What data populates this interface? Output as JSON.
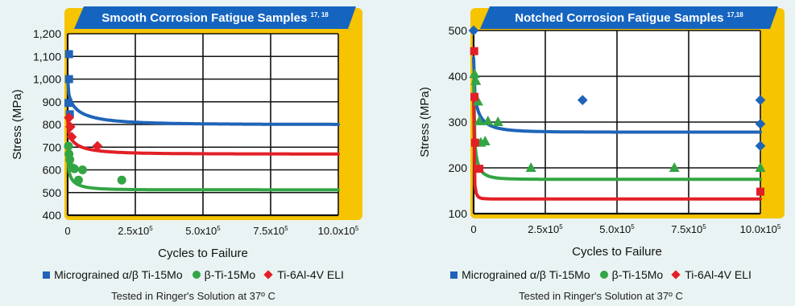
{
  "chart_data": [
    {
      "type": "scatter",
      "title": "Smooth Corrosion Fatigue Samples",
      "title_superscript": "17, 18",
      "xlabel": "Cycles to Failure",
      "ylabel": "Stress (MPa)",
      "xlim": [
        0,
        1000000
      ],
      "ylim": [
        400,
        1200
      ],
      "x_ticks": [
        0,
        250000,
        500000,
        750000,
        1000000
      ],
      "x_tick_labels": [
        "0",
        "2.5x10^5",
        "5.0x10^5",
        "7.5x10^5",
        "10.0x10^5"
      ],
      "y_ticks": [
        400,
        500,
        600,
        700,
        800,
        900,
        1000,
        1100,
        1200
      ],
      "y_tick_labels": [
        "400",
        "500",
        "600",
        "700",
        "800",
        "900",
        "1,000",
        "1,100",
        "1,200"
      ],
      "grid": true,
      "series": [
        {
          "name": "Micrograined α/β Ti-15Mo",
          "marker": "square",
          "color": "#1f64b8",
          "points": [
            [
              5000,
              1110
            ],
            [
              5000,
              1000
            ],
            [
              3000,
              895
            ],
            [
              8000,
              845
            ]
          ],
          "fit": {
            "a": 1000,
            "b": 800,
            "k": 6
          }
        },
        {
          "name": "β-Ti-15Mo",
          "marker": "circle",
          "color": "#33a544",
          "points": [
            [
              3000,
              705
            ],
            [
              5000,
              670
            ],
            [
              8000,
              645
            ],
            [
              15000,
              610
            ],
            [
              25000,
              605
            ],
            [
              40000,
              555
            ],
            [
              55000,
              600
            ],
            [
              200000,
              555
            ]
          ],
          "fit": {
            "a": 675,
            "b": 512,
            "k": 10
          }
        },
        {
          "name": "Ti-6Al-4V ELI",
          "marker": "diamond",
          "color": "#e21f26",
          "points": [
            [
              5000,
              830
            ],
            [
              10000,
              790
            ],
            [
              15000,
              745
            ],
            [
              110000,
              705
            ]
          ],
          "fit": {
            "a": 820,
            "b": 670,
            "k": 7
          }
        }
      ],
      "footnote": "Tested in Ringer's Solution at 37º C"
    },
    {
      "type": "scatter",
      "title": "Notched Corrosion Fatigue Samples",
      "title_superscript": "17,18",
      "xlabel": "Cycles to Failure",
      "ylabel": "Stress (MPa)",
      "xlim": [
        0,
        1000000
      ],
      "ylim": [
        100,
        500
      ],
      "x_ticks": [
        0,
        250000,
        500000,
        750000,
        1000000
      ],
      "x_tick_labels": [
        "0",
        "2.5x10^5",
        "5.0x10^5",
        "7.5x10^5",
        "10.0x10^5"
      ],
      "y_ticks": [
        100,
        200,
        300,
        400,
        500
      ],
      "y_tick_labels": [
        "100",
        "200",
        "300",
        "400",
        "500"
      ],
      "grid": true,
      "series": [
        {
          "name": "Micrograined α/β Ti-15Mo",
          "marker": "diamond",
          "color": "#1f64b8",
          "points": [
            [
              0,
              500
            ],
            [
              380000,
              348
            ],
            [
              1000000,
              348
            ],
            [
              1000000,
              296
            ],
            [
              1000000,
              248
            ]
          ],
          "fit": {
            "a": 440,
            "b": 278,
            "k": 10
          }
        },
        {
          "name": "β-Ti-15Mo",
          "marker": "triangle",
          "color": "#33a544",
          "points": [
            [
              3000,
              405
            ],
            [
              8000,
              390
            ],
            [
              15000,
              345
            ],
            [
              20000,
              302
            ],
            [
              25000,
              255
            ],
            [
              40000,
              258
            ],
            [
              50000,
              302
            ],
            [
              85000,
              300
            ],
            [
              200000,
              200
            ],
            [
              700000,
              200
            ],
            [
              1000000,
              200
            ]
          ],
          "fit": {
            "a": 390,
            "b": 175,
            "k": 15
          }
        },
        {
          "name": "Ti-6Al-4V ELI",
          "marker": "square",
          "color": "#e21f26",
          "points": [
            [
              2000,
              455
            ],
            [
              3000,
              355
            ],
            [
              5000,
              255
            ],
            [
              20000,
              198
            ],
            [
              1000000,
              148
            ]
          ],
          "fit": {
            "a": 355,
            "b": 132,
            "k": 30
          }
        }
      ],
      "footnote": "Tested in Ringer's Solution at 37º C"
    }
  ],
  "legend": {
    "item1": "Micrograined α/β Ti-15Mo",
    "item2": "β-Ti-15Mo",
    "item3": "Ti-6Al-4V ELI"
  },
  "colors": {
    "blue": "#1f64b8",
    "green": "#33a544",
    "red": "#e21f26",
    "plot_background": "#ffffff",
    "header_blue": "#1565c0",
    "frame_yellow": "#f6c400"
  }
}
